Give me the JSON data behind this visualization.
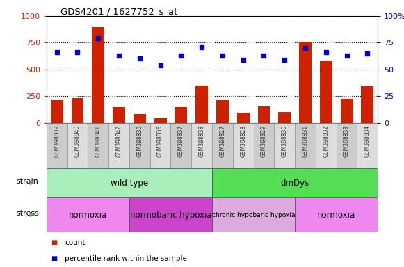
{
  "title": "GDS4201 / 1627752_s_at",
  "samples": [
    "GSM398839",
    "GSM398840",
    "GSM398841",
    "GSM398842",
    "GSM398835",
    "GSM398836",
    "GSM398837",
    "GSM398838",
    "GSM398827",
    "GSM398828",
    "GSM398829",
    "GSM398830",
    "GSM398831",
    "GSM398832",
    "GSM398833",
    "GSM398834"
  ],
  "counts": [
    215,
    230,
    895,
    145,
    85,
    45,
    150,
    350,
    215,
    95,
    155,
    105,
    760,
    580,
    225,
    345
  ],
  "percentile_ranks": [
    66,
    66,
    79,
    63,
    60,
    54,
    63,
    71,
    63,
    59,
    63,
    59,
    70,
    66,
    63,
    65
  ],
  "bar_color": "#cc2200",
  "dot_color": "#0000cc",
  "ylim_left": [
    0,
    1000
  ],
  "ylim_right": [
    0,
    100
  ],
  "yticks_left": [
    0,
    250,
    500,
    750,
    1000
  ],
  "yticks_right": [
    0,
    25,
    50,
    75,
    100
  ],
  "strain_groups": [
    {
      "label": "wild type",
      "start": 0,
      "end": 8,
      "color": "#aaeebb"
    },
    {
      "label": "dmDys",
      "start": 8,
      "end": 16,
      "color": "#55dd55"
    }
  ],
  "stress_groups": [
    {
      "label": "normoxia",
      "start": 0,
      "end": 4,
      "color": "#ee88ee"
    },
    {
      "label": "normobaric hypoxia",
      "start": 4,
      "end": 8,
      "color": "#cc44cc"
    },
    {
      "label": "chronic hypobaric hypoxia",
      "start": 8,
      "end": 12,
      "color": "#ddaadd"
    },
    {
      "label": "normoxia",
      "start": 12,
      "end": 16,
      "color": "#ee88ee"
    }
  ],
  "legend_count_label": "count",
  "legend_percentile_label": "percentile rank within the sample",
  "strain_label": "strain",
  "stress_label": "stress",
  "bg_color": "#ffffff",
  "tick_label_color_left": "#cc2200",
  "tick_label_color_right": "#0000cc",
  "grid_color": "#000000",
  "bar_width": 0.6,
  "xticklabel_color": "#333333",
  "xticklabel_bg": "#cccccc",
  "border_color": "#888888"
}
